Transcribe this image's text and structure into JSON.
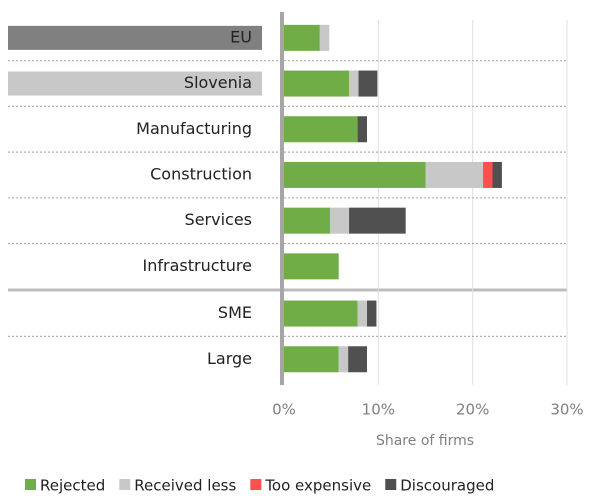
{
  "chart_data": {
    "type": "stacked-barh",
    "categories": [
      "EU",
      "Slovenia",
      "Manufacturing",
      "Construction",
      "Services",
      "Infrastructure",
      "SME",
      "Large"
    ],
    "label_backgrounds": [
      "#808080",
      "#c8c8c8",
      null,
      null,
      null,
      null,
      null,
      null
    ],
    "series": [
      {
        "name": "Rejected",
        "color": "#70ad47",
        "values": [
          3.8,
          6.9,
          7.8,
          15.0,
          4.9,
          5.8,
          7.8,
          5.8
        ]
      },
      {
        "name": "Received less",
        "color": "#c8c8c8",
        "values": [
          1.0,
          1.0,
          null,
          6.1,
          2.0,
          null,
          1.0,
          1.0
        ]
      },
      {
        "name": "Too expensive",
        "color": "#ff5050",
        "values": [
          null,
          null,
          null,
          1.0,
          null,
          null,
          null,
          null
        ]
      },
      {
        "name": "Discouraged",
        "color": "#505050",
        "values": [
          null,
          2.0,
          1.0,
          1.0,
          6.0,
          null,
          1.0,
          2.0
        ]
      }
    ],
    "xlim": [
      0,
      30
    ],
    "xticks": [
      {
        "value": 0,
        "label": "0%"
      },
      {
        "value": 10,
        "label": "10%"
      },
      {
        "value": 20,
        "label": "20%"
      },
      {
        "value": 30,
        "label": "30%"
      }
    ],
    "xlabel": "Share of firms",
    "grid": true
  }
}
